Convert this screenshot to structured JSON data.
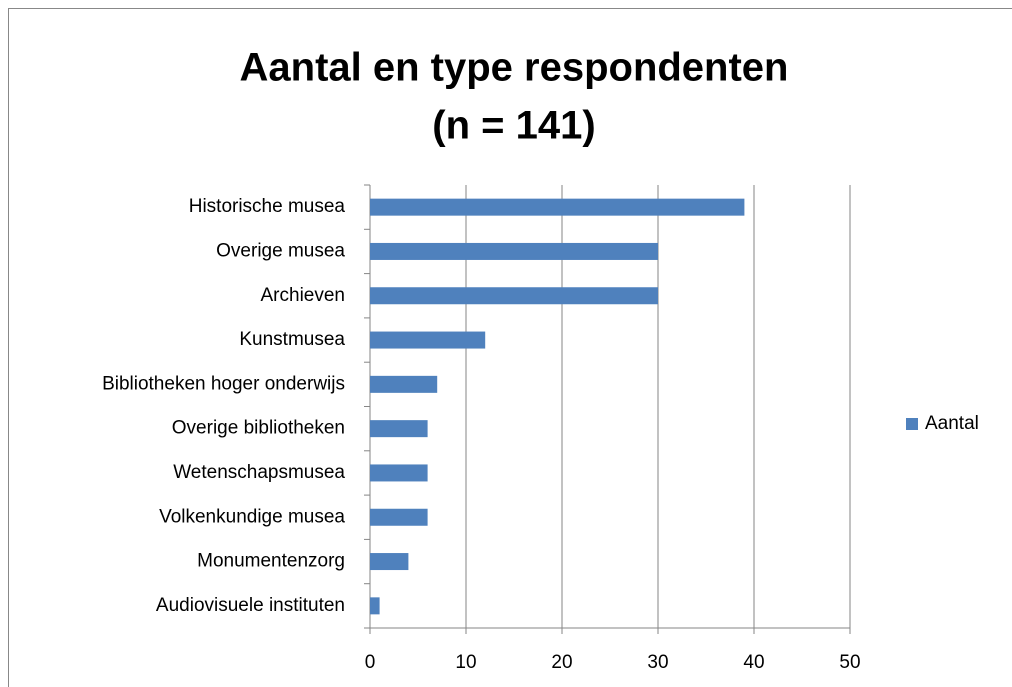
{
  "chart_data": {
    "type": "bar",
    "orientation": "horizontal",
    "title": [
      "Aantal en type respondenten",
      "(n = 141)"
    ],
    "categories": [
      "Historische musea",
      "Overige musea",
      "Archieven",
      "Kunstmusea",
      "Bibliotheken hoger onderwijs",
      "Overige bibliotheken",
      "Wetenschapsmusea",
      "Volkenkundige musea",
      "Monumentenzorg",
      "Audiovisuele instituten"
    ],
    "series": [
      {
        "name": "Aantal",
        "color": "#4f81bd",
        "values": [
          39,
          30,
          30,
          12,
          7,
          6,
          6,
          6,
          4,
          1
        ]
      }
    ],
    "xlim": [
      0,
      50
    ],
    "xticks": [
      0,
      10,
      20,
      30,
      40,
      50
    ],
    "grid": true,
    "legend": "right"
  }
}
